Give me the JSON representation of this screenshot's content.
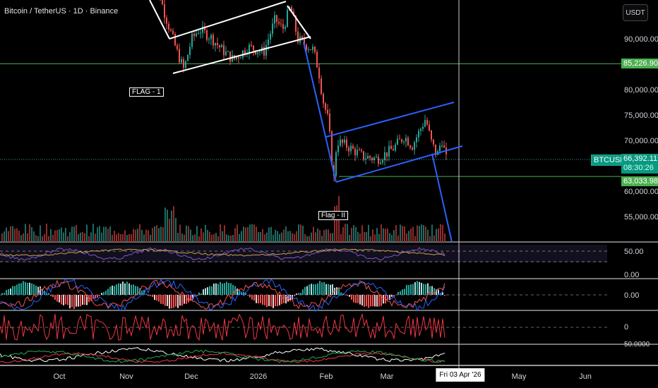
{
  "header": {
    "title": "Bitcoin / TetherUS · 1D · Binance",
    "currency_button": "USDT"
  },
  "price_scale": {
    "labels": [
      "90,000.00",
      "80,000.00",
      "75,000.00",
      "70,000.00",
      "60,000.00",
      "55,000.00"
    ],
    "levels": [
      90000,
      80000,
      75000,
      70000,
      60000,
      55000
    ]
  },
  "markers": {
    "upper_level": "85,226.90",
    "upper_level_value": 85226.9,
    "lower_level": "63,033.98",
    "lower_level_value": 63033.98,
    "symbol": "BTCUSDT",
    "last_price": "66,392.11",
    "last_price_value": 66392.11,
    "countdown": "08:30:26"
  },
  "annotations": {
    "flag1": "FLAG - 1",
    "flag2": "Flag - II"
  },
  "indicator_scales": {
    "rsi": "50.00",
    "rsi_low": "0.00",
    "macd": "0.00",
    "osc": "0",
    "bottom": "50.0000"
  },
  "time_axis": {
    "labels": [
      "Oct",
      "Nov",
      "Dec",
      "2026",
      "Feb",
      "Mar",
      "May",
      "Jun"
    ],
    "crosshair": "Fri 03 Apr '26"
  },
  "colors": {
    "up": "#26a69a",
    "down": "#ef5350",
    "level": "#4caf50",
    "channel_blue": "#2962ff"
  },
  "chart_data": {
    "type": "candlestick",
    "price_path": [
      [
        0,
        106000
      ],
      [
        20,
        95000
      ],
      [
        35,
        88000
      ],
      [
        45,
        84000
      ],
      [
        55,
        90000
      ],
      [
        65,
        92000
      ],
      [
        80,
        90500
      ],
      [
        95,
        88000
      ],
      [
        110,
        86000
      ],
      [
        130,
        88500
      ],
      [
        150,
        87500
      ],
      [
        165,
        94000
      ],
      [
        175,
        92000
      ],
      [
        185,
        96500
      ],
      [
        195,
        90000
      ],
      [
        205,
        89000
      ],
      [
        215,
        88000
      ],
      [
        222,
        84000
      ],
      [
        228,
        78000
      ],
      [
        235,
        74000
      ],
      [
        242,
        62000
      ],
      [
        246,
        70000
      ],
      [
        260,
        69000
      ],
      [
        280,
        67000
      ],
      [
        300,
        66500
      ],
      [
        320,
        68500
      ],
      [
        335,
        71000
      ],
      [
        345,
        69000
      ],
      [
        355,
        72000
      ],
      [
        363,
        74500
      ],
      [
        370,
        70000
      ],
      [
        378,
        67000
      ],
      [
        384,
        70500
      ],
      [
        390,
        66400
      ]
    ]
  }
}
